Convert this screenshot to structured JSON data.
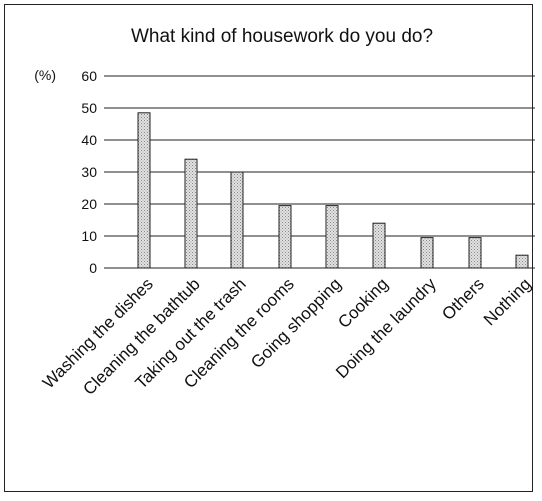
{
  "chart_data": {
    "type": "bar",
    "title": "What kind of housework do you do?",
    "unit_label": "(%)",
    "categories": [
      "Washing the dishes",
      "Cleaning the bathtub",
      "Taking out the trash",
      "Cleaning the rooms",
      "Going shopping",
      "Cooking",
      "Doing the laundry",
      "Others",
      "Nothing"
    ],
    "values": [
      48.5,
      34,
      30,
      19.5,
      19.5,
      14,
      9.5,
      9.5,
      4
    ],
    "ylim": [
      0,
      60
    ],
    "yticks": [
      0,
      10,
      20,
      30,
      40,
      50,
      60
    ],
    "grid": true,
    "bar_fill": "#c8c8c8",
    "bar_stroke": "#222222"
  }
}
